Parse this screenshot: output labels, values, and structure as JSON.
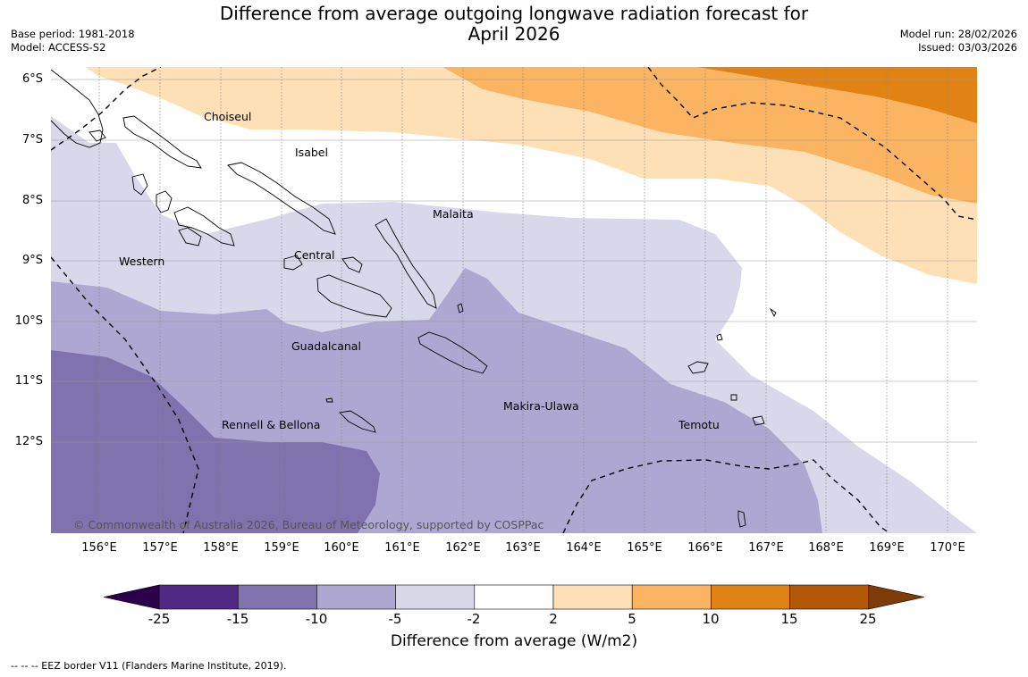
{
  "title": {
    "line1": "Difference from average outgoing longwave radiation forecast for",
    "line2": "April 2026"
  },
  "info": {
    "base_period": "Base period: 1981-2018",
    "model": "Model: ACCESS-S2",
    "model_run": "Model run: 28/02/2026",
    "issued": "Issued: 03/03/2026"
  },
  "map": {
    "lat_labels": [
      "6°S",
      "7°S",
      "8°S",
      "9°S",
      "10°S",
      "11°S",
      "12°S"
    ],
    "lon_labels": [
      "156°E",
      "157°E",
      "158°E",
      "159°E",
      "160°E",
      "161°E",
      "162°E",
      "163°E",
      "164°E",
      "165°E",
      "166°E",
      "167°E",
      "168°E",
      "169°E",
      "170°E"
    ],
    "provinces": [
      "Choiseul",
      "Isabel",
      "Malaita",
      "Western",
      "Central",
      "Guadalcanal",
      "Makira-Ulawa",
      "Rennell & Bellona",
      "Temotu"
    ],
    "copyright": "© Commonwealth of Australia 2026, Bureau of Meteorology, supported by COSPPac"
  },
  "colorbar": {
    "ticks": [
      "-25",
      "-15",
      "-10",
      "-5",
      "-2",
      "2",
      "5",
      "10",
      "15",
      "25"
    ],
    "colors": [
      "#522a85",
      "#7f72ad",
      "#aea7d2",
      "#d8d8ea",
      "#ffffff",
      "#fde0b6",
      "#fbb461",
      "#e08214",
      "#b35806"
    ],
    "under_color": "#2d004b",
    "over_color": "#7f3b08",
    "title": "Difference from average (W/m2)"
  },
  "footnote": "--  --  -- EEZ border V11 (Flanders Marine Institute, 2019)."
}
